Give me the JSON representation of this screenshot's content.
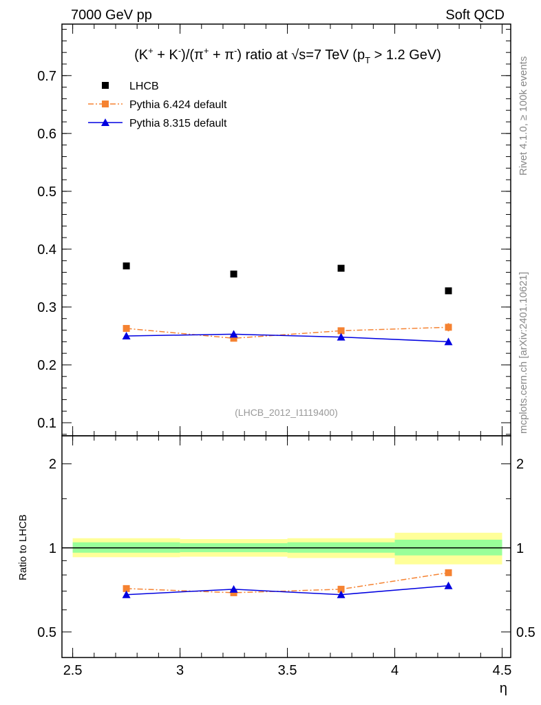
{
  "header": {
    "left": "7000 GeV pp",
    "right": "Soft QCD"
  },
  "side_labels": {
    "rivet": "Rivet 4.1.0, ≥ 100k events",
    "mcplots": "mcplots.cern.ch [arXiv:2401.10621]"
  },
  "chart_data": [
    {
      "type": "scatter",
      "title": "(K⁺ + K⁻)/(π⁺ + π⁻) ratio at √s=7 TeV (p_T > 1.2 GeV)",
      "title_parts": {
        "a": "(K",
        "b": "+",
        "c": " + K",
        "d": "-",
        "e": ")/(π",
        "f": "+",
        "g": " + π",
        "h": "-",
        "i": ") ratio at √s=7 TeV (p",
        "j": "T",
        "k": " > 1.2 GeV)"
      },
      "xlabel": "η",
      "ylabel": "",
      "xlim": [
        2.45,
        4.54
      ],
      "ylim": [
        0.0774,
        0.789
      ],
      "yticks": [
        0.1,
        0.2,
        0.3,
        0.4,
        0.5,
        0.6,
        0.7
      ],
      "ytick_labels": [
        "0.1",
        "0.2",
        "0.3",
        "0.4",
        "0.5",
        "0.6",
        "0.7"
      ],
      "x": [
        2.75,
        3.25,
        3.75,
        4.25
      ],
      "watermark": "(LHCB_2012_I1119400)",
      "legend_position": "top-left",
      "series": [
        {
          "name": "LHCB",
          "color": "#000000",
          "marker": "square",
          "line": "none",
          "values": [
            0.371,
            0.357,
            0.367,
            0.328
          ],
          "errors": [
            0.002,
            0.002,
            0.002,
            0.002
          ]
        },
        {
          "name": "Pythia 6.424 default",
          "color": "#f58231",
          "marker": "square",
          "line": "dashdot",
          "values": [
            0.263,
            0.246,
            0.259,
            0.265
          ],
          "errors": [
            0.005,
            0.005,
            0.005,
            0.007
          ]
        },
        {
          "name": "Pythia 8.315 default",
          "color": "#0000e0",
          "marker": "triangle",
          "line": "solid",
          "values": [
            0.25,
            0.253,
            0.248,
            0.24
          ],
          "errors": [
            0.004,
            0.005,
            0.004,
            0.005
          ]
        }
      ]
    },
    {
      "type": "line",
      "ylabel": "Ratio to LHCB",
      "xlabel": "η",
      "yscale": "log",
      "ylim": [
        0.405,
        2.52
      ],
      "yticks": [
        0.5,
        1,
        2
      ],
      "ytick_labels": [
        "0.5",
        "1",
        "2"
      ],
      "xticks": [
        2.5,
        3,
        3.5,
        4,
        4.5
      ],
      "xtick_labels": [
        "2.5",
        "3",
        "3.5",
        "4",
        "4.5"
      ],
      "bins": [
        [
          2.5,
          3.0
        ],
        [
          3.0,
          3.5
        ],
        [
          3.5,
          4.0
        ],
        [
          4.0,
          4.5
        ]
      ],
      "band_outer": [
        [
          0.926,
          1.083
        ],
        [
          0.93,
          1.075
        ],
        [
          0.92,
          1.083
        ],
        [
          0.873,
          1.133
        ]
      ],
      "band_inner": [
        [
          0.961,
          1.047
        ],
        [
          0.965,
          1.04
        ],
        [
          0.961,
          1.047
        ],
        [
          0.94,
          1.07
        ]
      ],
      "band_outer_color": "#ffff99",
      "band_inner_color": "#99ff99",
      "series": [
        {
          "name": "Pythia 6.424 default",
          "color": "#f58231",
          "values": [
            0.715,
            0.691,
            0.711,
            0.815
          ],
          "errors": [
            0.015,
            0.015,
            0.015,
            0.02
          ]
        },
        {
          "name": "Pythia 8.315 default",
          "color": "#0000e0",
          "values": [
            0.68,
            0.711,
            0.68,
            0.732
          ],
          "errors": [
            0.012,
            0.015,
            0.012,
            0.015
          ]
        }
      ]
    }
  ]
}
